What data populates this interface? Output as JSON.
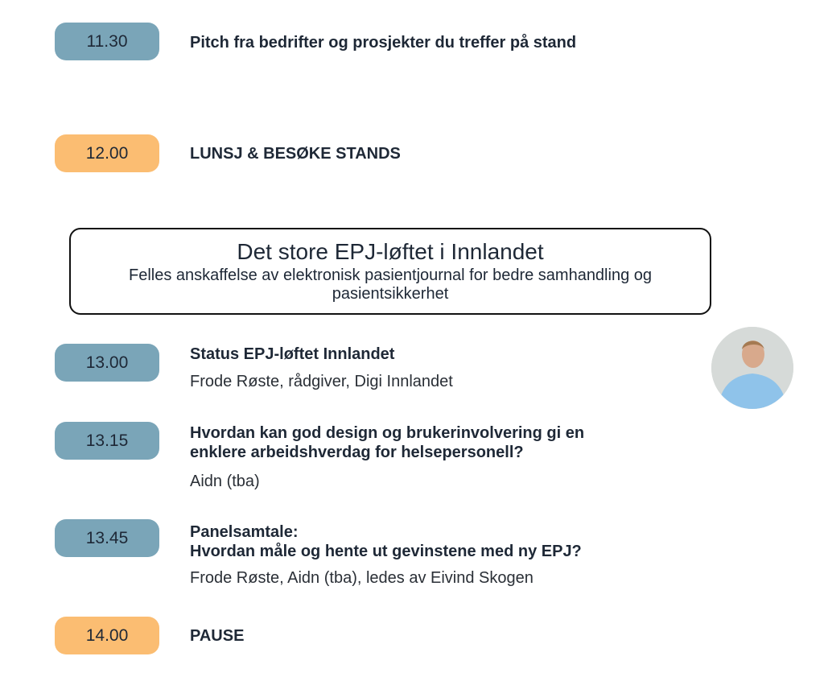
{
  "colors": {
    "time_blue": "#7aa5b8",
    "time_orange": "#fbbd72"
  },
  "items": [
    {
      "time": "11.30",
      "title": "Pitch fra bedrifter og prosjekter du treffer på stand"
    },
    {
      "time": "12.00",
      "title": "LUNSJ & BESØKE STANDS"
    },
    {
      "time": "13.00",
      "title": "Status EPJ-løftet Innlandet",
      "speakers": "Frode Røste, rådgiver, Digi Innlandet"
    },
    {
      "time": "13.15",
      "title_line1": "Hvordan kan god design og brukerinvolvering gi en",
      "title_line2": "enklere arbeidshverdag for helsepersonell?",
      "speakers": "Aidn (tba)"
    },
    {
      "time": "13.45",
      "title_line1": "Panelsamtale:",
      "title_line2": "Hvordan måle og hente ut gevinstene med ny EPJ?",
      "speakers": "Frode Røste, Aidn (tba), ledes av Eivind Skogen"
    },
    {
      "time": "14.00",
      "title": "PAUSE"
    }
  ],
  "section": {
    "title": "Det store EPJ-løftet i Innlandet",
    "subtitle": "Felles anskaffelse av elektronisk pasientjournal for bedre samhandling og pasientsikkerhet"
  }
}
